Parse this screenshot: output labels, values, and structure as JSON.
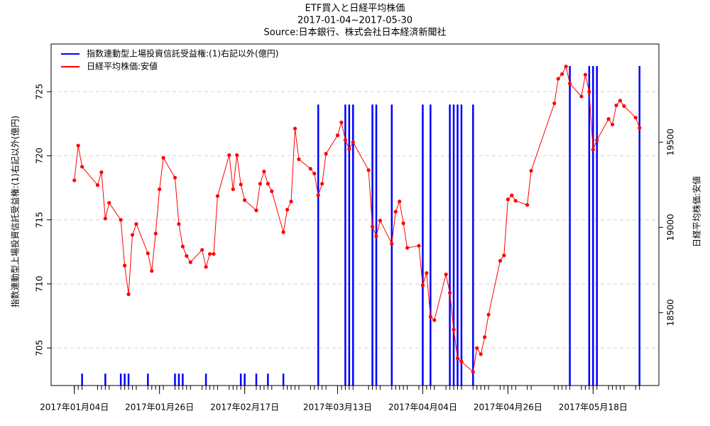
{
  "chart_data": {
    "type": "combo",
    "title": "ETF買入と日経平均株価",
    "subtitle": "2017-01-04~2017-05-30",
    "source": "Source:日本銀行、株式会社日本経済新聞社",
    "ylabel": "指数連動型上場投資信託受益権:(1)右記以外(億円)",
    "y2label": "日経平均株価:安値",
    "xlim": [
      "2016-12-29",
      "2017-06-04"
    ],
    "xticks": [
      {
        "value": "2017-01-04",
        "label": "2017年01月04日"
      },
      {
        "value": "2017-01-26",
        "label": "2017年01月26日"
      },
      {
        "value": "2017-02-17",
        "label": "2017年02月17日"
      },
      {
        "value": "2017-03-13",
        "label": "2017年03月13日"
      },
      {
        "value": "2017-04-04",
        "label": "2017年04月04日"
      },
      {
        "value": "2017-04-26",
        "label": "2017年04月26日"
      },
      {
        "value": "2017-05-18",
        "label": "2017年05月18日"
      }
    ],
    "ylim": [
      702.07,
      728.72
    ],
    "yticks": [
      705,
      710,
      715,
      720,
      725
    ],
    "y2lim": [
      18072,
      20076
    ],
    "y2ticks": [
      18500,
      19000,
      19500
    ],
    "grid": true,
    "legend": "topleft",
    "series": [
      {
        "name": "指数連動型上場投資信託受益権:(1)右記以外(億円)",
        "type": "spike",
        "color": "#0000ff",
        "axis": "y",
        "x": [
          "2017-01-06",
          "2017-01-12",
          "2017-01-16",
          "2017-01-17",
          "2017-01-18",
          "2017-01-23",
          "2017-01-30",
          "2017-01-31",
          "2017-02-01",
          "2017-02-07",
          "2017-02-16",
          "2017-02-17",
          "2017-02-20",
          "2017-02-23",
          "2017-02-27",
          "2017-03-08",
          "2017-03-15",
          "2017-03-16",
          "2017-03-17",
          "2017-03-22",
          "2017-03-23",
          "2017-03-27",
          "2017-04-04",
          "2017-04-06",
          "2017-04-11",
          "2017-04-12",
          "2017-04-13",
          "2017-04-14",
          "2017-04-17",
          "2017-05-12",
          "2017-05-17",
          "2017-05-18",
          "2017-05-19",
          "2017-05-30"
        ],
        "values": [
          703,
          703,
          703,
          703,
          703,
          703,
          703,
          703,
          703,
          703,
          703,
          703,
          703,
          703,
          703,
          724,
          724,
          724,
          724,
          724,
          724,
          724,
          724,
          724,
          724,
          724,
          724,
          724,
          724,
          727,
          727,
          727,
          727,
          727
        ]
      },
      {
        "name": "日経平均株価:安値",
        "type": "line",
        "color": "#ff0000",
        "axis": "y2",
        "x": [
          "2017-01-04",
          "2017-01-05",
          "2017-01-06",
          "2017-01-10",
          "2017-01-11",
          "2017-01-12",
          "2017-01-13",
          "2017-01-16",
          "2017-01-17",
          "2017-01-18",
          "2017-01-19",
          "2017-01-20",
          "2017-01-23",
          "2017-01-24",
          "2017-01-25",
          "2017-01-26",
          "2017-01-27",
          "2017-01-30",
          "2017-01-31",
          "2017-02-01",
          "2017-02-02",
          "2017-02-03",
          "2017-02-06",
          "2017-02-07",
          "2017-02-08",
          "2017-02-09",
          "2017-02-10",
          "2017-02-13",
          "2017-02-14",
          "2017-02-15",
          "2017-02-16",
          "2017-02-17",
          "2017-02-20",
          "2017-02-21",
          "2017-02-22",
          "2017-02-23",
          "2017-02-24",
          "2017-02-27",
          "2017-02-28",
          "2017-03-01",
          "2017-03-02",
          "2017-03-03",
          "2017-03-06",
          "2017-03-07",
          "2017-03-08",
          "2017-03-09",
          "2017-03-10",
          "2017-03-13",
          "2017-03-14",
          "2017-03-15",
          "2017-03-16",
          "2017-03-17",
          "2017-03-21",
          "2017-03-22",
          "2017-03-23",
          "2017-03-24",
          "2017-03-27",
          "2017-03-28",
          "2017-03-29",
          "2017-03-30",
          "2017-03-31",
          "2017-04-03",
          "2017-04-04",
          "2017-04-05",
          "2017-04-06",
          "2017-04-07",
          "2017-04-10",
          "2017-04-11",
          "2017-04-12",
          "2017-04-13",
          "2017-04-14",
          "2017-04-17",
          "2017-04-18",
          "2017-04-19",
          "2017-04-20",
          "2017-04-21",
          "2017-04-24",
          "2017-04-25",
          "2017-04-26",
          "2017-04-27",
          "2017-04-28",
          "2017-05-01",
          "2017-05-02",
          "2017-05-08",
          "2017-05-09",
          "2017-05-10",
          "2017-05-11",
          "2017-05-12",
          "2017-05-15",
          "2017-05-16",
          "2017-05-17",
          "2017-05-18",
          "2017-05-19",
          "2017-05-22",
          "2017-05-23",
          "2017-05-24",
          "2017-05-25",
          "2017-05-26",
          "2017-05-29",
          "2017-05-30"
        ],
        "values": [
          19276,
          19480,
          19356,
          19248,
          19324,
          19052,
          19144,
          19044,
          18776,
          18608,
          18956,
          19020,
          18848,
          18744,
          18964,
          19224,
          19408,
          19292,
          19020,
          18888,
          18832,
          18796,
          18868,
          18768,
          18844,
          18844,
          19184,
          19424,
          19224,
          19424,
          19252,
          19160,
          19100,
          19256,
          19328,
          19256,
          19212,
          18972,
          19104,
          19152,
          19580,
          19400,
          19344,
          19316,
          19188,
          19256,
          19432,
          19540,
          19616,
          19512,
          19460,
          19500,
          19336,
          19004,
          18948,
          19040,
          18904,
          19092,
          19152,
          19024,
          18880,
          18892,
          18660,
          18732,
          18476,
          18456,
          18724,
          18616,
          18400,
          18232,
          18212,
          18152,
          18292,
          18256,
          18356,
          18488,
          18804,
          18836,
          19164,
          19188,
          19156,
          19132,
          19332,
          19728,
          19872,
          19900,
          19944,
          19844,
          19768,
          19896,
          19796,
          19456,
          19512,
          19636,
          19604,
          19716,
          19744,
          19712,
          19644,
          19584
        ]
      }
    ]
  }
}
